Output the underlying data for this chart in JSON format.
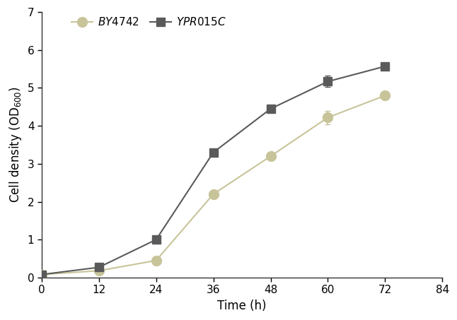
{
  "x": [
    0,
    12,
    24,
    36,
    48,
    60,
    72
  ],
  "by4742_y": [
    0.08,
    0.18,
    0.45,
    2.2,
    3.2,
    4.22,
    4.8
  ],
  "by4742_err": [
    0.02,
    0.02,
    0.03,
    0.05,
    0.05,
    0.18,
    0.05
  ],
  "ypr015c_y": [
    0.08,
    0.27,
    1.0,
    3.3,
    4.45,
    5.17,
    5.57
  ],
  "ypr015c_err": [
    0.02,
    0.02,
    0.08,
    0.07,
    0.1,
    0.15,
    0.1
  ],
  "by4742_color": "#c8c49a",
  "ypr015c_color": "#5a5a5a",
  "by4742_label": "$\\it{BY4742}$",
  "ypr015c_label": "$\\it{YPR015C}$",
  "xlabel": "Time (h)",
  "xlim": [
    0,
    84
  ],
  "ylim": [
    0,
    7
  ],
  "xticks": [
    0,
    12,
    24,
    36,
    48,
    60,
    72,
    84
  ],
  "yticks": [
    0,
    1,
    2,
    3,
    4,
    5,
    6,
    7
  ],
  "background_color": "#ffffff",
  "tick_fontsize": 11,
  "label_fontsize": 12,
  "legend_fontsize": 11
}
